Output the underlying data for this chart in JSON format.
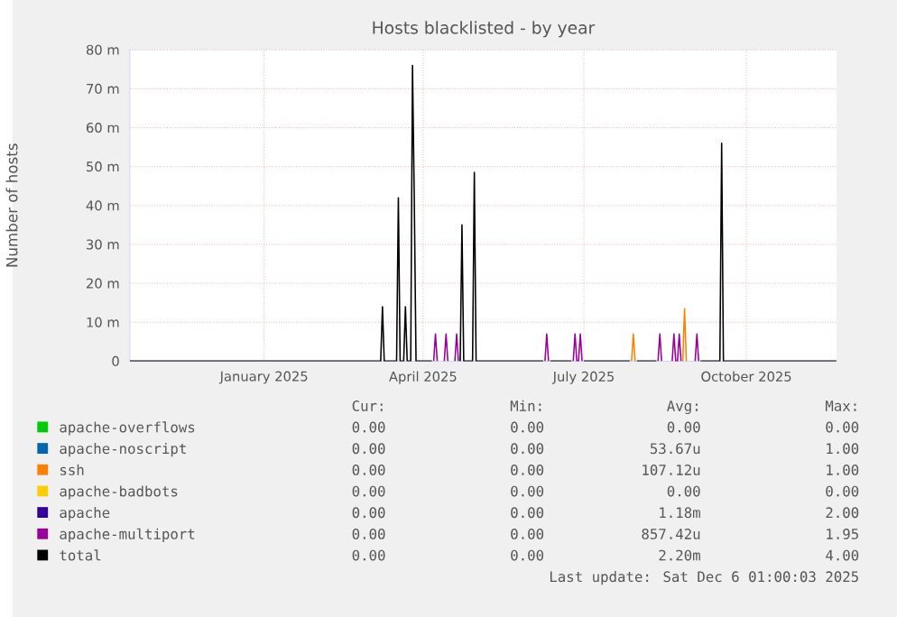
{
  "chart_data": {
    "type": "line",
    "title": "Hosts blacklisted - by year",
    "ylabel": "Number of hosts",
    "xlim": [
      "2024-11-01",
      "2025-12-06"
    ],
    "xticks": [
      {
        "value": "2025-01-16",
        "label": "January 2025"
      },
      {
        "value": "2025-04-16",
        "label": "April 2025"
      },
      {
        "value": "2025-07-16",
        "label": "July 2025"
      },
      {
        "value": "2025-10-16",
        "label": "October 2025"
      }
    ],
    "ylim": [
      0,
      80
    ],
    "yticks": [
      0,
      {
        "value": 10,
        "label": "10 m"
      },
      {
        "value": 20,
        "label": "20 m"
      },
      {
        "value": 30,
        "label": "30 m"
      },
      {
        "value": 40,
        "label": "40 m"
      },
      {
        "value": 50,
        "label": "50 m"
      },
      {
        "value": 60,
        "label": "60 m"
      },
      {
        "value": 70,
        "label": "70 m"
      },
      {
        "value": 80,
        "label": "80 m"
      }
    ],
    "grid": true,
    "legend": "bottom",
    "marker": "none",
    "line_style": "solid",
    "series": [
      {
        "name": "apache-overflows",
        "color": "#00cc00",
        "values": [
          null
        ]
      },
      {
        "name": "apache-noscript",
        "color": "#0066b3",
        "values": [
          null
        ]
      },
      {
        "name": "ssh",
        "color": "#ff8000",
        "x": [
          "2025-08-12",
          "2025-08-13",
          "2025-08-14",
          "2025-08-20",
          "2025-09-10",
          "2025-09-11",
          "2025-09-12"
        ],
        "values": [
          0,
          7,
          0,
          null,
          0,
          13.5,
          0
        ]
      },
      {
        "name": "apache-badbots",
        "color": "#ffcc00",
        "values": [
          null
        ]
      },
      {
        "name": "apache",
        "color": "#330099",
        "values": [
          null
        ]
      },
      {
        "name": "apache-multiport",
        "color": "#990099",
        "x": [
          "2025-04-22",
          "2025-04-23",
          "2025-04-24",
          "2025-04-26",
          "2025-04-28",
          "2025-04-29",
          "2025-04-30",
          "2025-05-02",
          "2025-05-04",
          "2025-05-05",
          "2025-05-06",
          "2025-06-01",
          "2025-06-24",
          "2025-06-25",
          "2025-06-26",
          "2025-07-01",
          "2025-07-10",
          "2025-07-11",
          "2025-07-12",
          "2025-07-13",
          "2025-07-14",
          "2025-07-15",
          "2025-08-01",
          "2025-08-27",
          "2025-08-28",
          "2025-08-29",
          "2025-09-01",
          "2025-09-04",
          "2025-09-05",
          "2025-09-06",
          "2025-09-07",
          "2025-09-08",
          "2025-09-09",
          "2025-09-15",
          "2025-09-17",
          "2025-09-18",
          "2025-09-19"
        ],
        "values": [
          0,
          7,
          0,
          null,
          0,
          7,
          0,
          null,
          0,
          7,
          0,
          null,
          0,
          7,
          0,
          null,
          0,
          7,
          0,
          0,
          7,
          0,
          null,
          0,
          7,
          0,
          null,
          0,
          7,
          0,
          0,
          7,
          0,
          null,
          0,
          7,
          0
        ]
      },
      {
        "name": "total",
        "color": "#000000",
        "x": [
          "2024-11-01",
          "2025-03-23",
          "2025-03-24",
          "2025-03-25",
          "2025-04-01",
          "2025-04-02",
          "2025-04-03",
          "2025-04-05",
          "2025-04-06",
          "2025-04-07",
          "2025-04-09",
          "2025-04-10",
          "2025-04-11",
          "2025-04-12",
          "2025-04-21",
          "2025-04-29",
          "2025-05-07",
          "2025-05-08",
          "2025-05-09",
          "2025-05-14",
          "2025-05-15",
          "2025-05-16",
          "2025-06-23",
          "2025-06-25",
          "2025-06-27",
          "2025-07-09",
          "2025-07-12",
          "2025-07-16",
          "2025-08-11",
          "2025-08-13",
          "2025-08-15",
          "2025-08-26",
          "2025-09-08",
          "2025-09-20",
          "2025-10-01",
          "2025-10-02",
          "2025-10-03",
          "2025-12-06"
        ],
        "values": [
          0,
          0,
          14,
          0,
          0,
          42,
          0,
          0,
          14,
          0,
          0,
          76,
          42,
          0,
          0,
          null,
          0,
          35,
          0,
          0,
          48.5,
          0,
          0,
          null,
          0,
          0,
          null,
          0,
          0,
          null,
          0,
          0,
          null,
          0,
          0,
          56,
          0,
          0
        ]
      }
    ],
    "annotations": [
      "Cur:",
      "Min:",
      "Avg:",
      "Max:",
      "0.00",
      "0.00",
      "0.00",
      "0.00",
      "0.00",
      "0.00",
      "53.67u",
      "1.00",
      "0.00",
      "0.00",
      "107.12u",
      "1.00",
      "0.00",
      "0.00",
      "0.00",
      "0.00",
      "0.00",
      "0.00",
      "1.18m",
      "2.00",
      "0.00",
      "0.00",
      "857.42u",
      "1.95",
      "0.00",
      "0.00",
      "2.20m",
      "4.00",
      "Last update: Sat Dec 6 01:00:03 2025"
    ]
  }
}
